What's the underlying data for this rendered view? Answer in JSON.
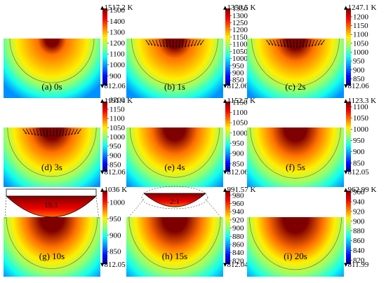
{
  "figure": {
    "colormap": [
      "#00008f",
      "#0010ff",
      "#0090ff",
      "#10ffef",
      "#90ff70",
      "#ffef00",
      "#ff7000",
      "#ef0000",
      "#7f0000"
    ],
    "panels": [
      {
        "label": "(a) 0s",
        "max_label": "1517.2 K",
        "min_label": "812.06",
        "ticks": [
          "1500",
          "1400",
          "1300",
          "1200",
          "1100",
          "1000",
          "900"
        ],
        "tick_values": [
          1500,
          1400,
          1300,
          1200,
          1100,
          1000,
          900
        ],
        "range": [
          812.06,
          1517.2
        ],
        "pool_level": 0.55,
        "has_arrows": false,
        "inset": null
      },
      {
        "label": "(b) 1s",
        "max_label": "1350.5 K",
        "min_label": "812.06",
        "ticks": [
          "1350",
          "1300",
          "1250",
          "1200",
          "1150",
          "1100",
          "1050",
          "1000",
          "950",
          "900",
          "850"
        ],
        "tick_values": [
          1350,
          1300,
          1250,
          1200,
          1150,
          1100,
          1050,
          1000,
          950,
          900,
          850
        ],
        "range": [
          812.06,
          1350.5
        ],
        "pool_level": 0.65,
        "has_arrows": true,
        "inset": null
      },
      {
        "label": "(c) 2s",
        "max_label": "1247.1 K",
        "min_label": "812.06",
        "ticks": [
          "1200",
          "1150",
          "1100",
          "1050",
          "1000",
          "950",
          "900",
          "850"
        ],
        "tick_values": [
          1200,
          1150,
          1100,
          1050,
          1000,
          950,
          900,
          850
        ],
        "range": [
          812.06,
          1247.1
        ],
        "pool_level": 0.72,
        "has_arrows": true,
        "inset": null
      },
      {
        "label": "(d) 3s",
        "max_label": "1191.4 K",
        "min_label": "812.06",
        "ticks": [
          "1200",
          "1150",
          "1100",
          "1050",
          "1000",
          "950",
          "900",
          "850"
        ],
        "tick_values": [
          1200,
          1150,
          1100,
          1050,
          1000,
          950,
          900,
          850
        ],
        "range": [
          812.06,
          1191.4
        ],
        "pool_level": 0.78,
        "has_arrows": true,
        "inset": null
      },
      {
        "label": "(e) 4s",
        "max_label": "1152.7 K",
        "min_label": "812.06",
        "ticks": [
          "1150",
          "1100",
          "1050",
          "1000",
          "950",
          "900",
          "850"
        ],
        "tick_values": [
          1150,
          1100,
          1050,
          1000,
          950,
          900,
          850
        ],
        "range": [
          812.06,
          1152.7
        ],
        "pool_level": 0.82,
        "has_arrows": false,
        "inset": null
      },
      {
        "label": "(f) 5s",
        "max_label": "1123.3 K",
        "min_label": "812.05",
        "ticks": [
          "1100",
          "1050",
          "1000",
          "950",
          "900",
          "850"
        ],
        "tick_values": [
          1100,
          1050,
          1000,
          950,
          900,
          850
        ],
        "range": [
          812.05,
          1123.3
        ],
        "pool_level": 0.86,
        "has_arrows": false,
        "inset": null
      },
      {
        "label": "(g) 10s",
        "max_label": "1036 K",
        "min_label": "812.05",
        "ticks": [
          "1000",
          "950",
          "900",
          "850"
        ],
        "tick_values": [
          1000,
          950,
          900,
          850
        ],
        "range": [
          812.05,
          1036
        ],
        "pool_level": 0.9,
        "has_arrows": false,
        "inset": {
          "ratio": "15:1"
        }
      },
      {
        "label": "(h) 15s",
        "max_label": "991.57 K",
        "min_label": "812.04",
        "ticks": [
          "980",
          "960",
          "940",
          "920",
          "900",
          "880",
          "860",
          "840",
          "820"
        ],
        "tick_values": [
          980,
          960,
          940,
          920,
          900,
          880,
          860,
          840,
          820
        ],
        "range": [
          812.04,
          991.57
        ],
        "pool_level": 0.92,
        "has_arrows": false,
        "inset": {
          "ratio": "2:1"
        }
      },
      {
        "label": "(i) 20s",
        "max_label": "962.99 K",
        "min_label": "811.99",
        "ticks": [
          "960",
          "940",
          "920",
          "900",
          "880",
          "860",
          "840",
          "820"
        ],
        "tick_values": [
          960,
          940,
          920,
          900,
          880,
          860,
          840,
          820
        ],
        "range": [
          811.99,
          962.99
        ],
        "pool_level": 0.95,
        "has_arrows": false,
        "inset": null
      }
    ]
  }
}
